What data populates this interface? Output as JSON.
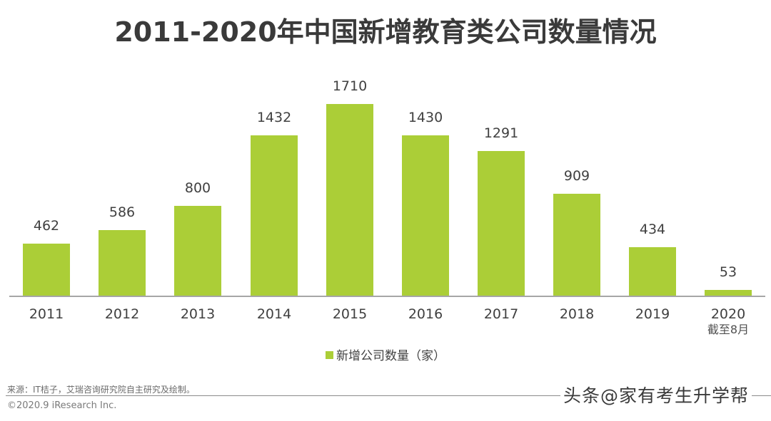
{
  "title": "2011-2020年中国新增教育类公司数量情况",
  "chart_data": {
    "type": "bar",
    "title": "2011-2020年中国新增教育类公司数量情况",
    "categories": [
      "2011",
      "2012",
      "2013",
      "2014",
      "2015",
      "2016",
      "2017",
      "2018",
      "2019",
      "2020"
    ],
    "category_notes": {
      "2020": "截至8月"
    },
    "series": [
      {
        "name": "新增公司数量（家）",
        "values": [
          462,
          586,
          800,
          1432,
          1710,
          1430,
          1291,
          909,
          434,
          53
        ],
        "color": "#abce37"
      }
    ],
    "xlabel": "",
    "ylabel": "",
    "ylim": [
      0,
      1710
    ],
    "grid": false,
    "legend_position": "bottom",
    "data_labels": true
  },
  "labels": {
    "values": [
      "462",
      "586",
      "800",
      "1432",
      "1710",
      "1430",
      "1291",
      "909",
      "434",
      "53"
    ],
    "categories": [
      "2011",
      "2012",
      "2013",
      "2014",
      "2015",
      "2016",
      "2017",
      "2018",
      "2019",
      "2020"
    ],
    "last_sub": "截至8月"
  },
  "legend": {
    "label": "新增公司数量（家）",
    "color": "#abce37"
  },
  "footer": {
    "source": "来源：IT桔子，艾瑞咨询研究院自主研究及绘制。",
    "copyright": "©2020.9 iResearch Inc.",
    "watermark": "头条@家有考生升学帮"
  }
}
